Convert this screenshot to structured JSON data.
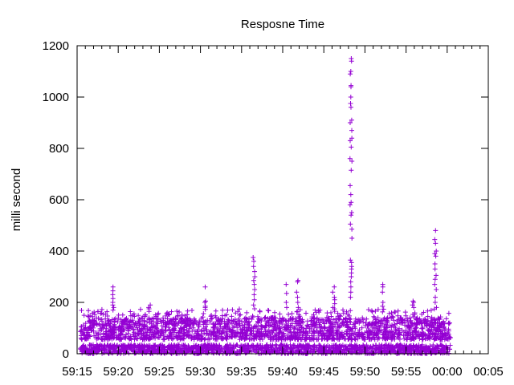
{
  "chart_data": {
    "type": "scatter",
    "title": "Resposne Time",
    "xlabel": "",
    "ylabel": "milli second",
    "x_unit": "seconds after 59:15",
    "xlim": [
      0,
      50
    ],
    "ylim": [
      0,
      1200
    ],
    "x_ticks": [
      0,
      5,
      10,
      15,
      20,
      25,
      30,
      35,
      40,
      45,
      50
    ],
    "x_tick_labels": [
      "59:15",
      "59:20",
      "59:25",
      "59:30",
      "59:35",
      "59:40",
      "59:45",
      "59:50",
      "59:55",
      "00:00",
      "00:05"
    ],
    "y_ticks": [
      0,
      200,
      400,
      600,
      800,
      1000,
      1200
    ],
    "y_tick_labels": [
      "0",
      "200",
      "400",
      "600",
      "800",
      "1000",
      "1200"
    ],
    "grid": false,
    "legend": "none",
    "marker": "plus",
    "color": "#9400d3",
    "series": [
      {
        "name": "response time",
        "data_range_x": [
          0.4,
          45.4
        ],
        "upper_band": [
          55,
          140
        ],
        "lower_band": [
          0,
          35
        ],
        "spikes": [
          {
            "x": 4.4,
            "values": [
              260,
              245,
              230,
              215,
              200,
              190,
              180,
              170
            ]
          },
          {
            "x": 8.8,
            "values": [
              190,
              180,
              175,
              165
            ]
          },
          {
            "x": 15.6,
            "values": [
              260,
              205,
              200,
              185,
              180
            ]
          },
          {
            "x": 21.5,
            "values": [
              375,
              360,
              340,
              320,
              300,
              285,
              270,
              250,
              230,
              210,
              190,
              175
            ]
          },
          {
            "x": 25.4,
            "values": [
              270,
              235,
              200,
              180
            ]
          },
          {
            "x": 26.8,
            "values": [
              285,
              280,
              240,
              220,
              200,
              180,
              165
            ]
          },
          {
            "x": 31.2,
            "values": [
              260,
              240,
              220,
              210,
              195,
              180
            ]
          },
          {
            "x": 33.3,
            "values": [
              1150,
              1140,
              1100,
              1090,
              1045,
              1040,
              1000,
              975,
              960,
              910,
              900,
              870,
              840,
              830,
              805,
              760,
              750,
              715,
              655,
              620,
              590,
              580,
              550,
              540,
              505,
              485,
              450,
              365,
              355,
              340,
              330,
              315,
              300,
              280,
              260,
              240,
              220
            ]
          },
          {
            "x": 37.2,
            "values": [
              270,
              260,
              240,
              200,
              185
            ]
          },
          {
            "x": 40.9,
            "values": [
              205,
              200,
              190,
              180
            ]
          },
          {
            "x": 43.6,
            "values": [
              480,
              445,
              430,
              400,
              390,
              380,
              350,
              330,
              305,
              290,
              270,
              250,
              220,
              200,
              180
            ]
          }
        ]
      }
    ]
  }
}
